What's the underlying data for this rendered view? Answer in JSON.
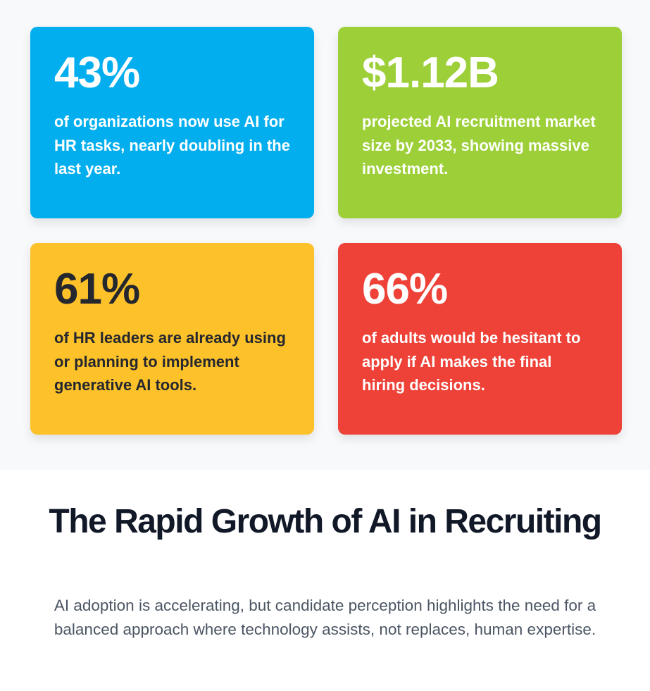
{
  "stats": [
    {
      "value": "43%",
      "text": "of organizations now use AI for HR tasks, nearly doubling in the last year.",
      "color": "#03aeee"
    },
    {
      "value": "$1.12B",
      "text": "projected AI recruitment market size by 2033, showing massive investment.",
      "color": "#9ccf38"
    },
    {
      "value": "61%",
      "text": "of HR leaders are already using or planning to implement generative AI tools.",
      "color": "#fdc22a"
    },
    {
      "value": "66%",
      "text": "of adults would be hesitant to apply if AI makes the final hiring decisions.",
      "color": "#ee4137"
    }
  ],
  "headline": {
    "title": "The Rapid Growth of AI in Recruiting",
    "subtitle": "AI adoption is accelerating, but candidate perception highlights the need for a balanced approach where technology assists, not replaces, human expertise."
  }
}
